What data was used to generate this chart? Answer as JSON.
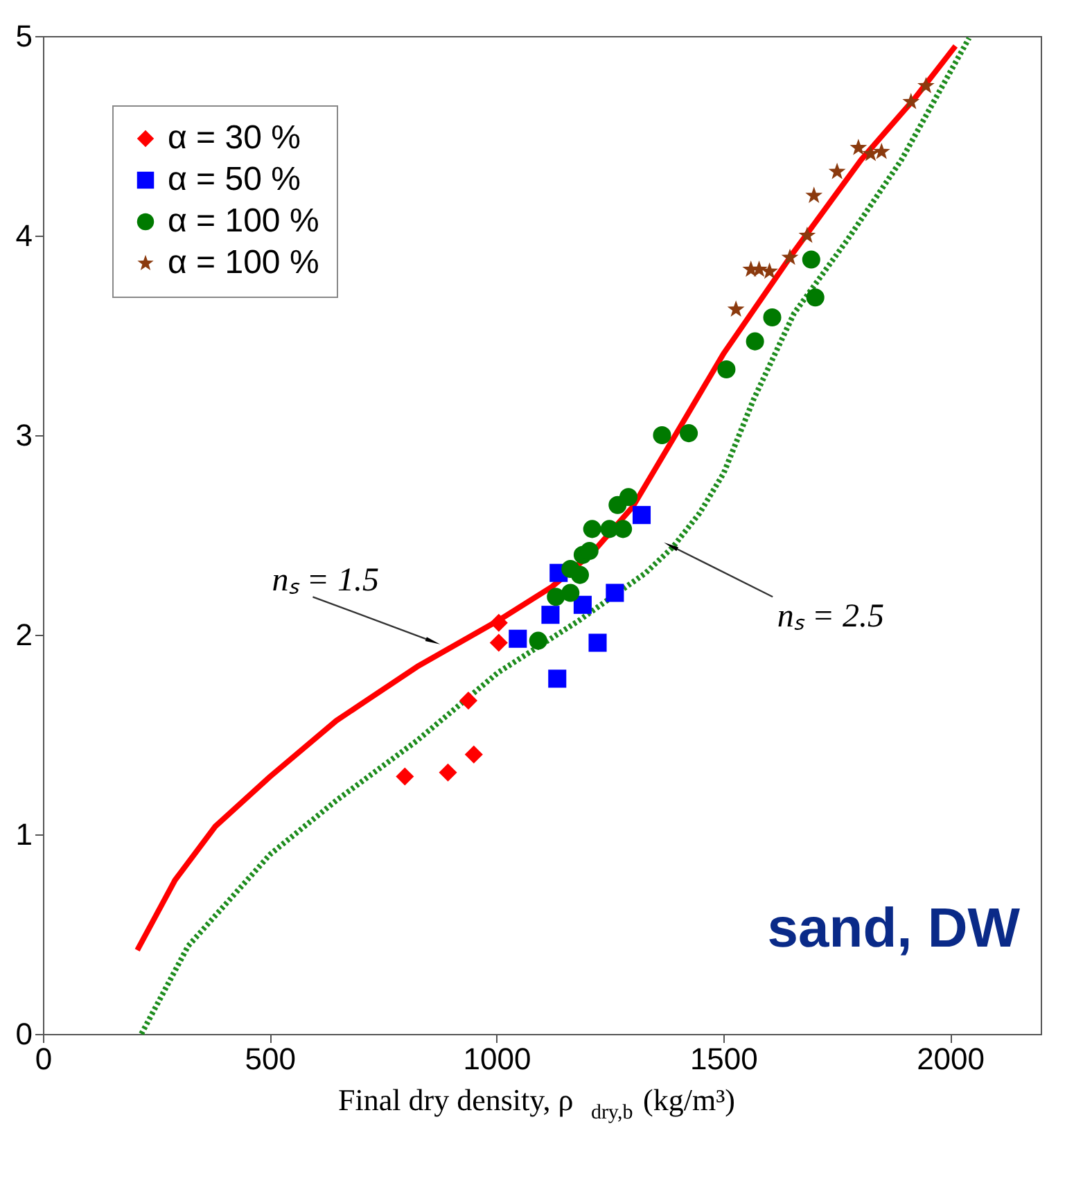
{
  "chart_data": {
    "type": "scatter",
    "xlabel": "Final dry density, ρ$_{dry,b}$ (kg/m³)",
    "xlim": [
      0,
      2200
    ],
    "xticks": [
      0,
      500,
      1000,
      1500,
      2000
    ],
    "ylim": [
      0,
      5
    ],
    "yticks": [
      0,
      1,
      2,
      3,
      4,
      5
    ],
    "grid": false,
    "legend": "top left",
    "series": [
      {
        "name": "α = 30 %",
        "color": "#ff0000",
        "marker": "diamond",
        "x": [
          798,
          893,
          950,
          938,
          1005,
          1005
        ],
        "values": [
          1.29,
          1.31,
          1.4,
          1.67,
          1.96,
          2.06
        ]
      },
      {
        "name": "α = 50 %",
        "color": "#0000ff",
        "marker": "square",
        "x": [
          1137,
          1047,
          1119,
          1190,
          1134,
          1223,
          1261,
          1320
        ],
        "values": [
          2.31,
          1.98,
          2.1,
          2.15,
          1.78,
          1.96,
          2.21,
          2.6
        ]
      },
      {
        "name": "α = 100 %",
        "color": "#007a00",
        "marker": "circle",
        "x": [
          1092,
          1131,
          1163,
          1184,
          1163,
          1190,
          1205,
          1211,
          1249,
          1279,
          1267,
          1291,
          1365,
          1424,
          1507,
          1570,
          1608,
          1694,
          1703
        ],
        "values": [
          1.97,
          2.19,
          2.21,
          2.3,
          2.33,
          2.4,
          2.42,
          2.53,
          2.53,
          2.53,
          2.65,
          2.69,
          3.0,
          3.01,
          3.33,
          3.47,
          3.59,
          3.88,
          3.69
        ]
      },
      {
        "name": "α = 100 %",
        "color": "#8b3a0e",
        "marker": "star",
        "x": [
          1528,
          1561,
          1579,
          1602,
          1647,
          1685,
          1700,
          1751,
          1798,
          1825,
          1849,
          1914,
          1947
        ],
        "values": [
          3.63,
          3.83,
          3.83,
          3.82,
          3.89,
          4.0,
          4.2,
          4.32,
          4.44,
          4.41,
          4.42,
          4.67,
          4.75
        ]
      },
      {
        "type": "line",
        "color": "#ff0000",
        "line_style": "solid",
        "x": [
          208,
          291,
          380,
          501,
          647,
          825,
          1003,
          1122,
          1211,
          1300,
          1389,
          1501,
          1656,
          1804,
          1923,
          2012
        ],
        "values": [
          0.42,
          0.77,
          1.04,
          1.29,
          1.57,
          1.84,
          2.07,
          2.24,
          2.41,
          2.64,
          2.98,
          3.41,
          3.92,
          4.38,
          4.69,
          4.95
        ]
      },
      {
        "type": "line",
        "color": "#1e8c1e",
        "line_style": "dotted",
        "x": [
          217,
          320,
          501,
          647,
          825,
          1003,
          1181,
          1329,
          1389,
          1448,
          1501,
          1567,
          1656,
          1774,
          1893,
          2042
        ],
        "values": [
          0,
          0.44,
          0.9,
          1.17,
          1.47,
          1.81,
          2.07,
          2.31,
          2.44,
          2.61,
          2.81,
          3.18,
          3.61,
          3.98,
          4.38,
          4.99
        ]
      }
    ],
    "annotations": [
      {
        "text": "nₛ = 1.5",
        "x": 855,
        "y": 1.97
      },
      {
        "text": "nₛ = 2.5",
        "x": 1389,
        "y": 2.44
      },
      "sand, DW"
    ]
  }
}
